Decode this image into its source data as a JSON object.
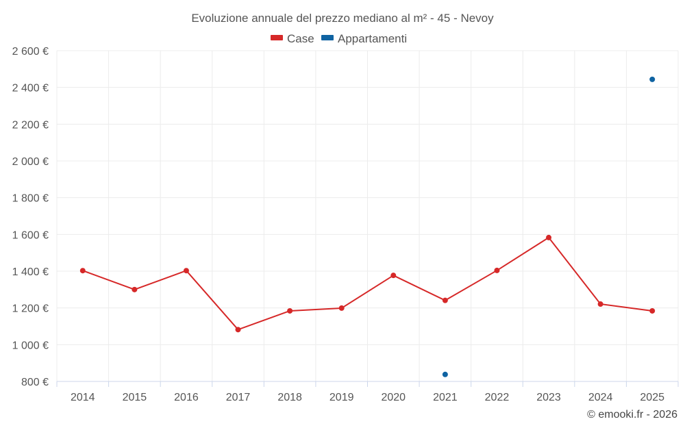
{
  "chart_data": {
    "type": "line",
    "title": "Evoluzione annuale del prezzo mediano al m² - 45 - Nevoy",
    "categories": [
      "2014",
      "2015",
      "2016",
      "2017",
      "2018",
      "2019",
      "2020",
      "2021",
      "2022",
      "2023",
      "2024",
      "2025"
    ],
    "series": [
      {
        "name": "Case",
        "color": "#d62828",
        "values": [
          1403,
          1300,
          1403,
          1082,
          1184,
          1199,
          1377,
          1241,
          1404,
          1583,
          1221,
          1184
        ]
      },
      {
        "name": "Appartamenti",
        "color": "#0f63a2",
        "values": [
          null,
          null,
          null,
          null,
          null,
          null,
          null,
          838,
          null,
          null,
          null,
          2444
        ]
      }
    ],
    "ylim": [
      800,
      2600
    ],
    "yticks": [
      800,
      1000,
      1200,
      1400,
      1600,
      1800,
      2000,
      2200,
      2400,
      2600
    ],
    "ytick_labels": [
      "800 €",
      "1 000 €",
      "1 200 €",
      "1 400 €",
      "1 600 €",
      "1 800 €",
      "2 000 €",
      "2 200 €",
      "2 400 €",
      "2 600 €"
    ],
    "legend_position": "top-center",
    "grid": true
  },
  "credit": "© emooki.fr - 2026"
}
